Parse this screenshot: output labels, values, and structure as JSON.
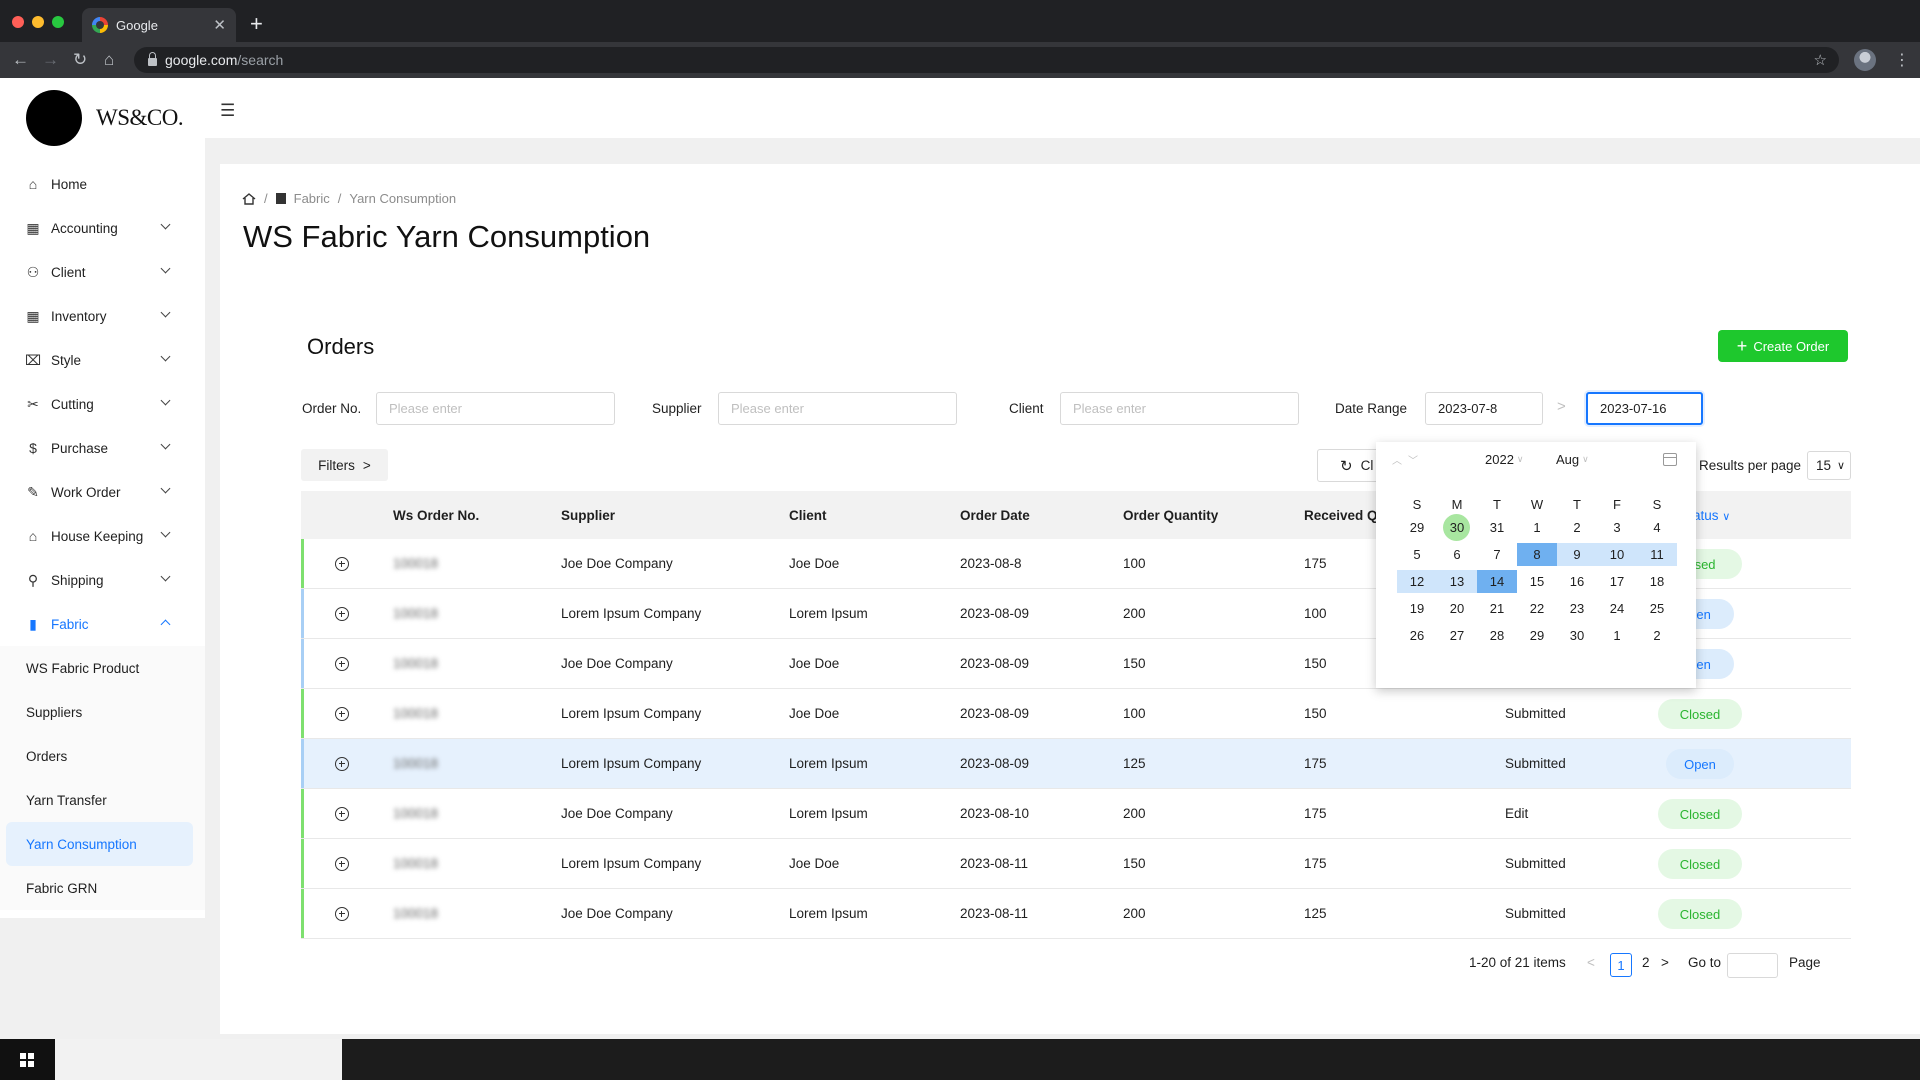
{
  "browser": {
    "tab_title": "Google",
    "url_host": "google.com",
    "url_path": "/search",
    "traffic_colors": [
      "#ff5f57",
      "#febc2e",
      "#28c840"
    ]
  },
  "brand": {
    "name": "WS&CO."
  },
  "sidebar": {
    "items": [
      {
        "label": "Home",
        "icon": "home-icon",
        "glyph": "⌂",
        "has_chevron": false
      },
      {
        "label": "Accounting",
        "icon": "accounting-icon",
        "glyph": "▦",
        "has_chevron": true
      },
      {
        "label": "Client",
        "icon": "client-icon",
        "glyph": "⚇",
        "has_chevron": true
      },
      {
        "label": "Inventory",
        "icon": "inventory-icon",
        "glyph": "▦",
        "has_chevron": true
      },
      {
        "label": "Style",
        "icon": "style-icon",
        "glyph": "⌧",
        "has_chevron": true
      },
      {
        "label": "Cutting",
        "icon": "cutting-icon",
        "glyph": "✂",
        "has_chevron": true
      },
      {
        "label": "Purchase",
        "icon": "purchase-icon",
        "glyph": "$",
        "has_chevron": true
      },
      {
        "label": "Work Order",
        "icon": "work-order-icon",
        "glyph": "✎",
        "has_chevron": true
      },
      {
        "label": "House Keeping",
        "icon": "house-keeping-icon",
        "glyph": "⌂",
        "has_chevron": true
      },
      {
        "label": "Shipping",
        "icon": "shipping-icon",
        "glyph": "⚲",
        "has_chevron": true
      },
      {
        "label": "Fabric",
        "icon": "fabric-icon",
        "glyph": "▮",
        "has_chevron": true
      }
    ],
    "fabric_sub": [
      "WS Fabric Product",
      "Suppliers",
      "Orders",
      "Yarn Transfer",
      "Yarn Consumption",
      "Fabric GRN"
    ],
    "active_sub": "Yarn Consumption"
  },
  "breadcrumb": {
    "items": [
      "Fabric",
      "Yarn Consumption"
    ]
  },
  "page": {
    "title": "WS Fabric Yarn Consumption"
  },
  "orders": {
    "title": "Orders",
    "create_label": "Create Order",
    "accent_green": "#1ec82d",
    "filters": {
      "order_no_label": "Order No.",
      "supplier_label": "Supplier",
      "client_label": "Client",
      "date_range_label": "Date Range",
      "placeholder": "Please enter",
      "date_from": "2023-07-8",
      "date_to": "2023-07-16"
    },
    "filters_button": "Filters",
    "clear_button": "Cl",
    "results_per_page_label": "Results per page",
    "results_per_page": "15"
  },
  "table": {
    "columns": [
      "Ws Order No.",
      "Supplier",
      "Client",
      "Order Date",
      "Order Quantity",
      "Received Qu",
      "",
      "atus"
    ],
    "rows": [
      {
        "order_no": "100018",
        "supplier": "Joe Doe Company",
        "client": "Joe Doe",
        "date": "2023-08-8",
        "qty": "100",
        "received": "175",
        "stage": "",
        "status": "losed",
        "bar": "green",
        "status_type": "closed"
      },
      {
        "order_no": "100018",
        "supplier": "Lorem Ipsum Company",
        "client": "Lorem Ipsum",
        "date": "2023-08-09",
        "qty": "200",
        "received": "100",
        "stage": "",
        "status": "pen",
        "bar": "blue",
        "status_type": "open"
      },
      {
        "order_no": "100018",
        "supplier": "Joe Doe  Company",
        "client": "Joe Doe",
        "date": "2023-08-09",
        "qty": "150",
        "received": "150",
        "stage": "",
        "status": "pen",
        "bar": "blue",
        "status_type": "open"
      },
      {
        "order_no": "100018",
        "supplier": "Lorem Ipsum Company",
        "client": "Joe Doe",
        "date": "2023-08-09",
        "qty": "100",
        "received": "150",
        "stage": "Submitted",
        "status": "Closed",
        "bar": "green",
        "status_type": "closed"
      },
      {
        "order_no": "100018",
        "supplier": "Lorem Ipsum Company",
        "client": "Lorem Ipsum",
        "date": "2023-08-09",
        "qty": "125",
        "received": "175",
        "stage": "Submitted",
        "status": "Open",
        "bar": "blue",
        "status_type": "open",
        "highlight": true
      },
      {
        "order_no": "100018",
        "supplier": "Joe Doe Company",
        "client": "Lorem Ipsum",
        "date": "2023-08-10",
        "qty": "200",
        "received": "175",
        "stage": "Edit",
        "status": "Closed",
        "bar": "green",
        "status_type": "closed"
      },
      {
        "order_no": "100018",
        "supplier": "Lorem Ipsum Company",
        "client": "Joe Doe",
        "date": "2023-08-11",
        "qty": "150",
        "received": "175",
        "stage": "Submitted",
        "status": "Closed",
        "bar": "green",
        "status_type": "closed"
      },
      {
        "order_no": "100018",
        "supplier": "Joe Doe  Company",
        "client": "Lorem Ipsum",
        "date": "2023-08-11",
        "qty": "200",
        "received": "125",
        "stage": "Submitted",
        "status": "Closed",
        "bar": "green",
        "status_type": "closed"
      }
    ]
  },
  "pagination": {
    "summary": "1-20 of 21 items",
    "current_page": "1",
    "next_page": "2",
    "goto_label": "Go to",
    "page_label": "Page"
  },
  "calendar": {
    "year": "2022",
    "month": "Aug",
    "weekdays": [
      "S",
      "M",
      "T",
      "W",
      "T",
      "F",
      "S"
    ],
    "weeks": [
      [
        "29",
        "30",
        "31",
        "1",
        "2",
        "3",
        "4"
      ],
      [
        "5",
        "6",
        "7",
        "8",
        "9",
        "10",
        "11"
      ],
      [
        "12",
        "13",
        "14",
        "15",
        "16",
        "17",
        "18"
      ],
      [
        "19",
        "20",
        "21",
        "22",
        "23",
        "24",
        "25"
      ],
      [
        "26",
        "27",
        "28",
        "29",
        "30",
        "1",
        "2"
      ]
    ],
    "today": "30",
    "range_start": "8",
    "range_end": "14"
  },
  "colors": {
    "primary_blue": "#1677ff",
    "row_bar_green": "#7ee06f",
    "row_bar_blue": "#a8cff5"
  }
}
